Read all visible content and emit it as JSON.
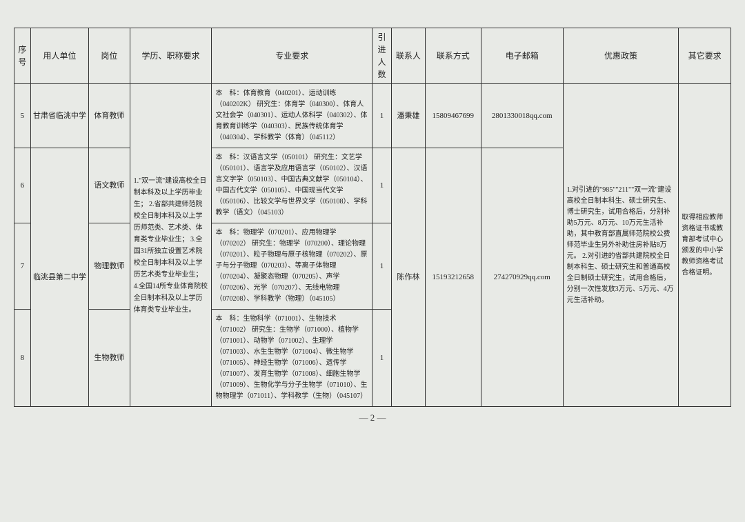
{
  "headers": {
    "idx": "序号",
    "unit": "用人单位",
    "position": "岗位",
    "education": "学历、职称要求",
    "requirement": "专业要求",
    "count": "引进人数",
    "contact": "联系人",
    "phone": "联系方式",
    "email": "电子邮箱",
    "policy": "优惠政策",
    "other": "其它要求"
  },
  "rows": {
    "r5": {
      "idx": "5",
      "unit": "甘肃省临洮中学",
      "position": "体育教师",
      "requirement": "本　科：体育教育（040201）、运动训练（040202K）\n研究生：体育学（040300）、体育人文社会学（040301）、运动人体科学（040302）、体育教育训练学（040303）、民族传统体育学（040304）、学科教学（体育）（045112）",
      "count": "1",
      "contact": "潘秉雄",
      "phone": "15809467699",
      "email": "2801330018qq.com"
    },
    "r6": {
      "idx": "6",
      "position": "语文教师",
      "requirement": "本　科：汉语言文学（050101）\n研究生：文艺学（050101）、语言学及应用语言学（050102）、汉语言文字学（050103）、中国古典文献学（050104）、中国古代文学（050105）、中国现当代文学（050106）、比较文学与世界文学（050108）、学科教学（语文）（045103）",
      "count": "1"
    },
    "r7": {
      "idx": "7",
      "unit": "临洮县第二中学",
      "position": "物理教师",
      "requirement": "本　科：物理学（070201）、应用物理学（070202）\n研究生：物理学（070200）、理论物理（070201）、粒子物理与原子核物理（070202）、原子与分子物理（070203）、等离子体物理（070204）、凝聚态物理（070205）、声学（070206）、光学（070207）、无线电物理（070208）、学科教学（物理）（045105）",
      "count": "1",
      "contact": "陈作林",
      "phone": "15193212658",
      "email": "274270929qq.com"
    },
    "r8": {
      "idx": "8",
      "position": "生物教师",
      "requirement": "本　科：生物科学（071001）、生物技术（071002）\n研究生：生物学（071000）、植物学（071001）、动物学（071002）、生理学（071003）、水生生物学（071004）、微生物学（071005）、神经生物学（071006）、遗传学（071007）、发育生物学（071008）、细胞生物学（071009）、生物化学与分子生物学（071010）、生物物理学（071011）、学科教学（生物）（045107）",
      "count": "1"
    }
  },
  "shared": {
    "education": "1.\"双一流\"建设高校全日制本科及以上学历毕业生；\n2.省部共建师范院校全日制本科及以上学历师范类、艺术类、体育类专业毕业生；\n3.全国31所独立设置艺术院校全日制本科及以上学历艺术类专业毕业生；\n4.全国14所专业体育院校全日制本科及以上学历体育类专业毕业生。",
    "policy": "1.对引进的\"985\"\"211\"\"双一流\"建设高校全日制本科生、硕士研究生、博士研究生，试用合格后，分别补助5万元、8万元、10万元生活补助，其中教育部直属师范院校公费师范毕业生另外补助住房补贴8万元。\n2.对引进的省部共建院校全日制本科生、硕士研究生和普通高校全日制硕士研究生，试用合格后，分别一次性发放3万元、5万元、4万元生活补助。",
    "other": "取得相应教师资格证书或教育部考试中心颁发的中小学教师资格考试合格证明。"
  },
  "page_number": "— 2 —"
}
